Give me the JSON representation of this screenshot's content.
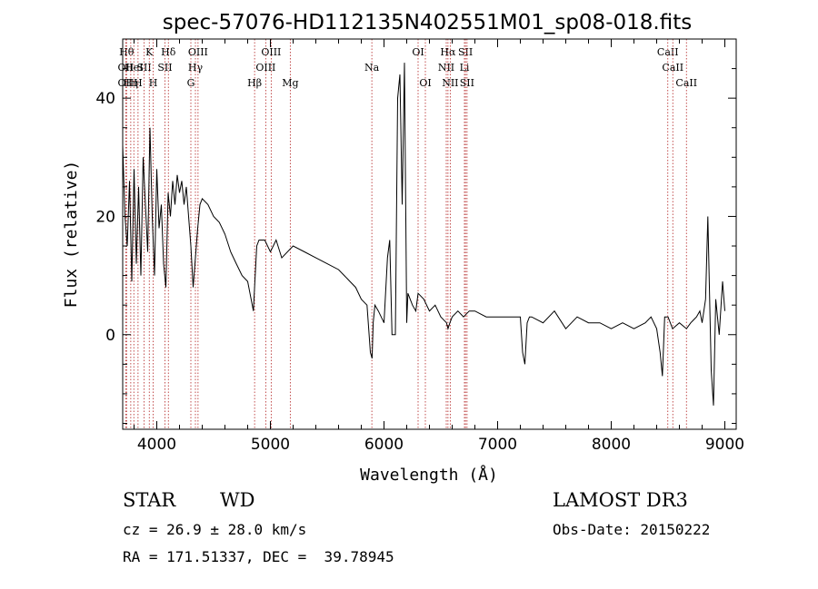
{
  "chart_data": {
    "type": "line",
    "title": "spec-57076-HD112135N402551M01_sp08-018.fits",
    "xlabel": "Wavelength (Å)",
    "ylabel": "Flux (relative)",
    "xlim": [
      3700,
      9100
    ],
    "ylim": [
      -16,
      50
    ],
    "xticks": [
      4000,
      5000,
      6000,
      7000,
      8000,
      9000
    ],
    "yticks": [
      0,
      20,
      40
    ],
    "grid": false,
    "legend": "none",
    "colors": {
      "spectrum": "#000000",
      "lines": "#b22222"
    },
    "series": [
      {
        "x": [
          3700,
          3720,
          3740,
          3760,
          3780,
          3800,
          3820,
          3840,
          3860,
          3880,
          3900,
          3920,
          3940,
          3960,
          3980,
          4000,
          4020,
          4040,
          4060,
          4080,
          4100,
          4120,
          4140,
          4160,
          4180,
          4200,
          4220,
          4240,
          4260,
          4280,
          4300,
          4320,
          4340,
          4360,
          4380,
          4400,
          4450,
          4500,
          4550,
          4600,
          4650,
          4700,
          4750,
          4800,
          4830,
          4850,
          4861,
          4880,
          4900,
          4950,
          5000,
          5050,
          5100,
          5200,
          5300,
          5400,
          5500,
          5600,
          5650,
          5700,
          5750,
          5800,
          5850,
          5880,
          5895,
          5905,
          5920,
          5950,
          6000,
          6030,
          6050,
          6070,
          6080,
          6100,
          6120,
          6140,
          6160,
          6180,
          6200,
          6210,
          6230,
          6250,
          6280,
          6300,
          6350,
          6400,
          6450,
          6500,
          6550,
          6563,
          6580,
          6600,
          6650,
          6700,
          6750,
          6800,
          6900,
          7000,
          7100,
          7200,
          7220,
          7240,
          7260,
          7280,
          7300,
          7400,
          7500,
          7600,
          7700,
          7800,
          7900,
          8000,
          8100,
          8200,
          8300,
          8350,
          8400,
          8430,
          8450,
          8470,
          8500,
          8540,
          8600,
          8662,
          8700,
          8750,
          8780,
          8800,
          8830,
          8850,
          8880,
          8900,
          8920,
          8950,
          8980,
          9000
        ],
        "y": [
          32,
          20,
          15,
          26,
          9,
          28,
          12,
          25,
          10,
          30,
          22,
          14,
          35,
          20,
          10,
          28,
          18,
          22,
          12,
          8,
          24,
          20,
          26,
          22,
          27,
          24,
          26,
          22,
          25,
          20,
          15,
          8,
          13,
          18,
          22,
          23,
          22,
          20,
          19,
          17,
          14,
          12,
          10,
          9,
          6,
          4,
          8,
          15,
          16,
          16,
          14,
          16,
          13,
          15,
          14,
          13,
          12,
          11,
          10,
          9,
          8,
          6,
          5,
          -3,
          -4,
          2,
          5,
          4,
          2,
          13,
          16,
          0,
          0,
          0,
          40,
          44,
          22,
          46,
          2,
          7,
          6,
          5,
          4,
          7,
          6,
          4,
          5,
          3,
          2,
          1,
          2,
          3,
          4,
          3,
          4,
          4,
          3,
          3,
          3,
          3,
          -3,
          -5,
          2,
          3,
          3,
          2,
          4,
          1,
          3,
          2,
          2,
          1,
          2,
          1,
          2,
          3,
          1,
          -3,
          -7,
          3,
          3,
          1,
          2,
          1,
          2,
          3,
          4,
          2,
          6,
          20,
          -6,
          -12,
          6,
          0,
          9,
          4
        ]
      }
    ],
    "line_markers": [
      {
        "wl": 3734,
        "tier": 1,
        "label": "Hθ"
      },
      {
        "wl": 3727,
        "tier": 2,
        "label": "OII"
      },
      {
        "wl": 3727,
        "tier": 3,
        "label": "OII"
      },
      {
        "wl": 3771,
        "tier": 3,
        "label": "Hη"
      },
      {
        "wl": 3798,
        "tier": 2,
        "label": "HeI"
      },
      {
        "wl": 3835,
        "tier": 3,
        "label": "H"
      },
      {
        "wl": 3889,
        "tier": 2,
        "label": "SII"
      },
      {
        "wl": 3934,
        "tier": 1,
        "label": "K"
      },
      {
        "wl": 3968,
        "tier": 3,
        "label": "H"
      },
      {
        "wl": 4102,
        "tier": 1,
        "label": "Hδ"
      },
      {
        "wl": 4072,
        "tier": 2,
        "label": "SII"
      },
      {
        "wl": 4300,
        "tier": 3,
        "label": "G"
      },
      {
        "wl": 4340,
        "tier": 2,
        "label": "Hγ"
      },
      {
        "wl": 4363,
        "tier": 1,
        "label": "OIII"
      },
      {
        "wl": 4861,
        "tier": 3,
        "label": "Hβ"
      },
      {
        "wl": 4959,
        "tier": 2,
        "label": "OIII"
      },
      {
        "wl": 5007,
        "tier": 1,
        "label": "OIII"
      },
      {
        "wl": 5175,
        "tier": 3,
        "label": "Mg"
      },
      {
        "wl": 5893,
        "tier": 2,
        "label": "Na"
      },
      {
        "wl": 6300,
        "tier": 1,
        "label": "OI"
      },
      {
        "wl": 6364,
        "tier": 3,
        "label": "OI"
      },
      {
        "wl": 6548,
        "tier": 2,
        "label": "NII"
      },
      {
        "wl": 6563,
        "tier": 1,
        "label": "Hα"
      },
      {
        "wl": 6583,
        "tier": 3,
        "label": "NII"
      },
      {
        "wl": 6708,
        "tier": 2,
        "label": "Li"
      },
      {
        "wl": 6717,
        "tier": 1,
        "label": "SII"
      },
      {
        "wl": 6731,
        "tier": 3,
        "label": "SII"
      },
      {
        "wl": 8498,
        "tier": 1,
        "label": "CaII"
      },
      {
        "wl": 8542,
        "tier": 2,
        "label": "CaII"
      },
      {
        "wl": 8662,
        "tier": 3,
        "label": "CaII"
      }
    ]
  },
  "info": {
    "class_label": "STAR",
    "subclass_label": "WD",
    "survey": "LAMOST DR3",
    "cz": "cz = 26.9 ± 28.0 km/s",
    "obs_date": "Obs-Date: 20150222",
    "coords": "RA = 171.51337, DEC =  39.78945"
  }
}
